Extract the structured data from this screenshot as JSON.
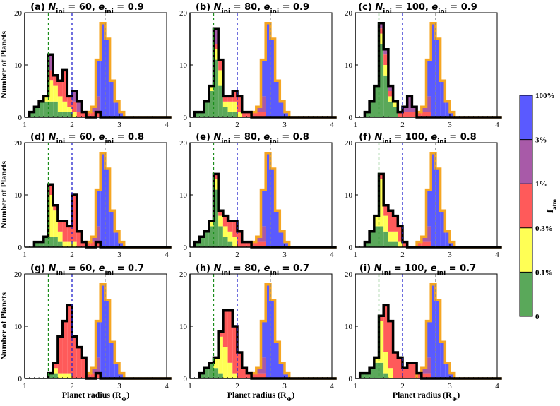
{
  "chart_data": {
    "type": "histogram-grid",
    "xlim": [
      1,
      4
    ],
    "ylim": [
      0,
      20
    ],
    "x_ticks": [
      1,
      2,
      3,
      4
    ],
    "y_ticks": [
      0,
      10,
      20
    ],
    "xlabel": "Planet radius (R",
    "xlabel_symbol": "⊕",
    "xlabel_close": ")",
    "ylabel": "Number of Planets",
    "bin_width": 0.1,
    "bin_start": 1.1,
    "reference_lines": [
      {
        "x": 1.5,
        "color": "#1a8c1a",
        "style": "dashed"
      },
      {
        "x": 2.0,
        "color": "#2222cc",
        "style": "dashed"
      },
      {
        "x": 2.7,
        "color": "#888888",
        "style": "dashed"
      }
    ],
    "colors": {
      "green": "#5aa85a",
      "yellow": "#ffff55",
      "red": "#ff5a5a",
      "purple": "#a85aa8",
      "blue": "#5a5aff",
      "orange": "#f5a623",
      "black_outline": "#000000"
    },
    "colorbar": {
      "label_main": "f",
      "label_sub": "atm",
      "ticks": [
        "100%",
        "3%",
        "1%",
        "0.3%",
        "0.1%",
        "0"
      ],
      "segments": [
        "#5a5aff",
        "#a85aa8",
        "#ff5a5a",
        "#ffff55",
        "#5aa85a"
      ]
    },
    "reference_distribution": [
      0,
      0,
      0,
      0,
      0,
      0,
      0,
      0,
      0,
      0,
      0,
      0,
      1,
      2,
      11,
      18,
      15,
      7,
      3,
      1,
      0,
      0,
      0,
      0,
      0,
      0,
      0,
      0,
      0,
      0
    ],
    "reference_stack": [
      [
        0,
        0,
        0,
        0,
        0,
        0,
        0,
        0,
        0,
        0,
        0,
        0,
        1,
        1,
        1,
        0,
        0,
        0,
        0,
        0,
        0,
        0,
        0,
        0,
        0,
        0,
        0,
        0,
        0,
        0
      ],
      [
        0,
        0,
        0,
        0,
        0,
        0,
        0,
        0,
        0,
        0,
        0,
        0,
        0,
        1,
        3,
        0,
        0,
        0,
        0,
        0,
        0,
        0,
        0,
        0,
        0,
        0,
        0,
        0,
        0,
        0
      ],
      [
        0,
        0,
        0,
        0,
        0,
        0,
        0,
        0,
        0,
        0,
        0,
        0,
        0,
        0,
        7,
        16,
        6,
        0,
        0,
        0,
        0,
        0,
        0,
        0,
        0,
        0,
        0,
        0,
        0,
        0
      ]
    ],
    "panels": [
      {
        "label": "(a)",
        "N": "60",
        "e": "0.9",
        "black": [
          1,
          2,
          3,
          4,
          12,
          8,
          7,
          9,
          4,
          5,
          3,
          1,
          0,
          0,
          1,
          0,
          0,
          0,
          0,
          0,
          0,
          0,
          0,
          0,
          0,
          0,
          0,
          0,
          0,
          0
        ],
        "stack": [
          [
            1,
            2,
            3,
            3,
            3,
            3,
            1,
            1,
            1,
            0,
            0,
            0
          ],
          [
            0,
            0,
            0,
            1,
            4,
            3,
            3,
            2,
            1,
            1,
            0,
            0
          ],
          [
            0,
            0,
            0,
            0,
            2,
            2,
            3,
            6,
            2,
            2,
            1,
            1
          ]
        ]
      },
      {
        "label": "(b)",
        "N": "80",
        "e": "0.9",
        "black": [
          1,
          1,
          3,
          6,
          17,
          11,
          4,
          4,
          5,
          4,
          1,
          1,
          0,
          0,
          0,
          0,
          0,
          0,
          0,
          0,
          0,
          0,
          0,
          0,
          0,
          0,
          0,
          0,
          0,
          0
        ],
        "stack": [
          [
            1,
            1,
            3,
            5,
            11,
            6,
            2,
            1,
            1,
            0,
            0,
            0
          ],
          [
            0,
            0,
            0,
            1,
            2,
            3,
            1,
            2,
            2,
            1,
            0,
            0
          ],
          [
            0,
            0,
            0,
            0,
            1,
            2,
            1,
            1,
            2,
            3,
            1,
            1
          ]
        ]
      },
      {
        "label": "(c)",
        "N": "100",
        "e": "0.9",
        "black": [
          0,
          1,
          3,
          6,
          18,
          13,
          6,
          3,
          1,
          2,
          4,
          2,
          0,
          0,
          0,
          0,
          0,
          0,
          0,
          0,
          0,
          0,
          0,
          0,
          0,
          0,
          0,
          0,
          0,
          0
        ],
        "stack": [
          [
            0,
            1,
            3,
            6,
            14,
            8,
            3,
            2,
            0,
            0,
            0,
            0
          ],
          [
            0,
            0,
            0,
            0,
            2,
            2,
            1,
            1,
            0,
            0,
            0,
            0
          ],
          [
            0,
            0,
            0,
            0,
            1,
            2,
            1,
            0,
            1,
            1,
            1,
            1
          ]
        ]
      },
      {
        "label": "(d)",
        "N": "60",
        "e": "0.8",
        "black": [
          0,
          1,
          1,
          2,
          12,
          8,
          5,
          5,
          4,
          10,
          3,
          1,
          0,
          0,
          1,
          0,
          0,
          0,
          0,
          0,
          0,
          0,
          0,
          0,
          0,
          0,
          0,
          0,
          0,
          0
        ],
        "stack": [
          [
            0,
            1,
            1,
            2,
            2,
            2,
            1,
            0,
            0,
            0,
            0,
            0
          ],
          [
            0,
            0,
            0,
            0,
            8,
            5,
            2,
            1,
            1,
            1,
            0,
            0
          ],
          [
            0,
            0,
            0,
            0,
            2,
            1,
            2,
            4,
            3,
            9,
            3,
            1
          ]
        ]
      },
      {
        "label": "(e)",
        "N": "80",
        "e": "0.8",
        "black": [
          1,
          2,
          3,
          5,
          14,
          7,
          6,
          5,
          5,
          3,
          1,
          1,
          0,
          0,
          0,
          0,
          0,
          0,
          0,
          0,
          0,
          0,
          0,
          0,
          0,
          0,
          0,
          0,
          0,
          0
        ],
        "stack": [
          [
            1,
            2,
            3,
            4,
            11,
            4,
            2,
            1,
            0,
            0,
            0,
            0
          ],
          [
            0,
            0,
            0,
            1,
            2,
            2,
            2,
            2,
            2,
            0,
            0,
            0
          ],
          [
            0,
            0,
            0,
            0,
            1,
            1,
            2,
            2,
            3,
            3,
            1,
            1
          ]
        ]
      },
      {
        "label": "(f)",
        "N": "100",
        "e": "0.8",
        "black": [
          0,
          1,
          3,
          6,
          14,
          8,
          7,
          6,
          4,
          1,
          0,
          0,
          0,
          0,
          0,
          0,
          0,
          0,
          0,
          0,
          0,
          0,
          0,
          0,
          0,
          0,
          0,
          0,
          0,
          0
        ],
        "stack": [
          [
            0,
            1,
            3,
            4,
            4,
            3,
            1,
            1,
            0,
            0,
            0,
            0
          ],
          [
            0,
            0,
            0,
            2,
            9,
            3,
            2,
            2,
            1,
            0,
            0,
            0
          ],
          [
            0,
            0,
            0,
            0,
            1,
            2,
            4,
            3,
            3,
            1,
            0,
            0
          ]
        ]
      },
      {
        "label": "(g)",
        "N": "60",
        "e": "0.7",
        "black": [
          0,
          0,
          0,
          0,
          1,
          3,
          8,
          11,
          14,
          8,
          6,
          4,
          0,
          0,
          1,
          0,
          0,
          0,
          0,
          0,
          0,
          0,
          0,
          0,
          0,
          0,
          0,
          0,
          0,
          0
        ],
        "stack": [
          [
            0,
            0,
            0,
            0,
            1,
            1,
            0,
            0,
            0,
            0,
            0,
            0
          ],
          [
            0,
            0,
            0,
            0,
            0,
            1,
            1,
            1,
            1,
            0,
            0,
            0
          ],
          [
            0,
            0,
            0,
            0,
            0,
            1,
            7,
            10,
            13,
            8,
            6,
            4
          ]
        ]
      },
      {
        "label": "(h)",
        "N": "80",
        "e": "0.7",
        "black": [
          0,
          1,
          2,
          3,
          4,
          9,
          13,
          13,
          10,
          5,
          2,
          1,
          0,
          0,
          0,
          0,
          0,
          0,
          0,
          0,
          0,
          0,
          0,
          0,
          0,
          0,
          0,
          0,
          0,
          0
        ],
        "stack": [
          [
            0,
            1,
            2,
            3,
            2,
            1,
            0,
            0,
            0,
            0,
            0,
            0
          ],
          [
            0,
            0,
            0,
            0,
            2,
            7,
            6,
            3,
            1,
            0,
            0,
            0
          ],
          [
            0,
            0,
            0,
            0,
            0,
            1,
            7,
            10,
            9,
            5,
            2,
            1
          ]
        ]
      },
      {
        "label": "(i)",
        "N": "100",
        "e": "0.7",
        "black": [
          1,
          1,
          2,
          4,
          12,
          14,
          11,
          5,
          4,
          2,
          3,
          3,
          1,
          0,
          0,
          0,
          0,
          0,
          0,
          0,
          0,
          0,
          0,
          0,
          0,
          0,
          0,
          0,
          0,
          0
        ],
        "stack": [
          [
            1,
            1,
            2,
            3,
            3,
            1,
            0,
            0,
            0,
            0,
            0,
            0
          ],
          [
            0,
            0,
            0,
            1,
            8,
            4,
            2,
            0,
            0,
            0,
            0,
            0
          ],
          [
            0,
            0,
            0,
            0,
            1,
            9,
            9,
            5,
            4,
            2,
            3,
            3
          ]
        ]
      }
    ]
  }
}
